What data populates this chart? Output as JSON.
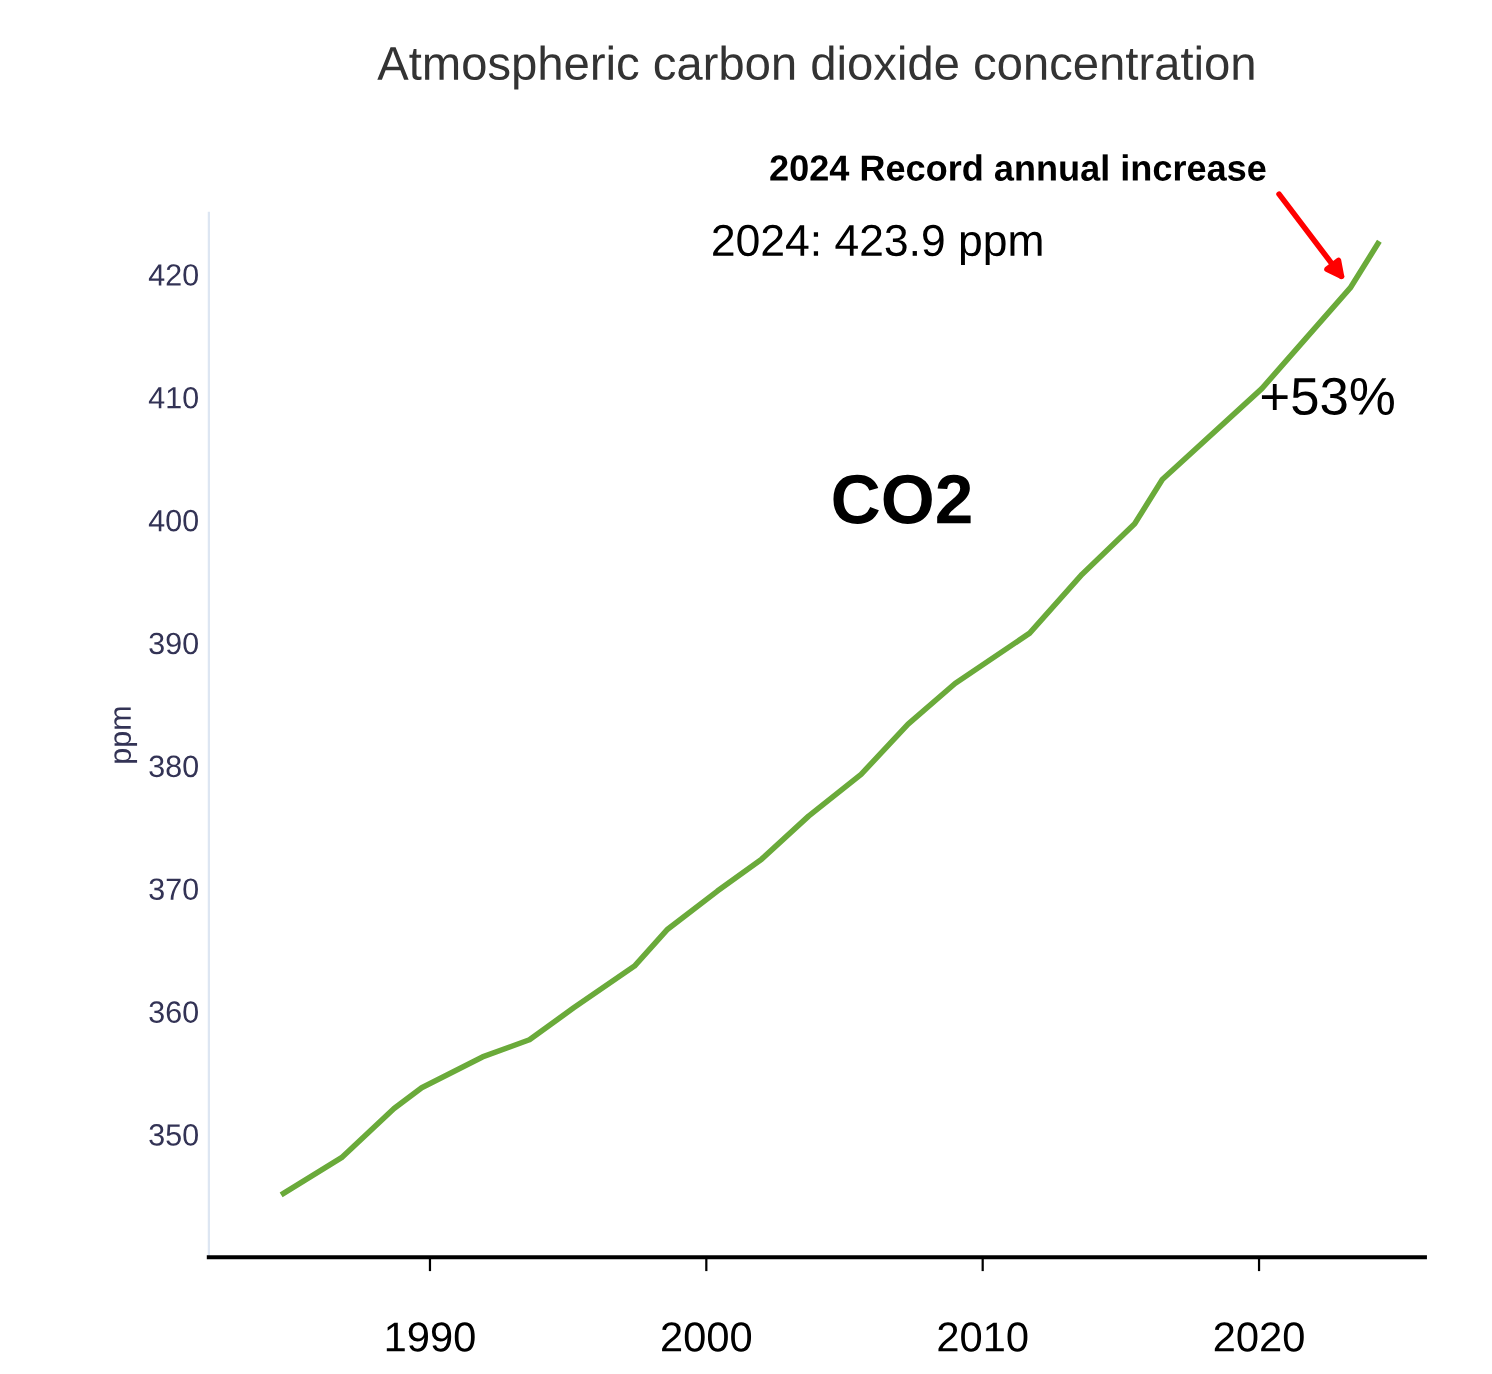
{
  "chart_data": {
    "type": "line",
    "title": "Atmospheric carbon dioxide concentration",
    "ylabel": "ppm",
    "x": [
      1984.7,
      1986.8,
      1988.7,
      1989.7,
      1991.9,
      1993.6,
      1995.2,
      1997.4,
      1998.6,
      2000.4,
      2002.0,
      2003.7,
      2005.6,
      2007.3,
      2009.0,
      2011.7,
      2013.6,
      2015.5,
      2016.5,
      2020.1,
      2023.3,
      2024.3
    ],
    "series": [
      {
        "color": "#6aaa3a",
        "values": [
          345.2,
          348.1,
          352.1,
          353.8,
          356.3,
          357.7,
          360.3,
          363.7,
          366.7,
          369.8,
          372.4,
          375.9,
          379.3,
          383.4,
          386.7,
          390.8,
          395.6,
          399.7,
          403.3,
          410.7,
          418.9,
          422.5
        ]
      }
    ],
    "xlim": [
      1982,
      2026
    ],
    "xticks": [
      1990,
      2000,
      2010,
      2020
    ],
    "ylim": [
      340,
      425
    ],
    "yticks": [
      350,
      360,
      370,
      380,
      390,
      400,
      410,
      420
    ],
    "grid": false,
    "marker": "none",
    "line_style": "solid",
    "annotations": [
      {
        "text": "2024 Record annual increase",
        "x": 2023.3,
        "y": 418.9
      },
      "2024: 423.9 ppm",
      "+53%",
      "CO2"
    ]
  }
}
